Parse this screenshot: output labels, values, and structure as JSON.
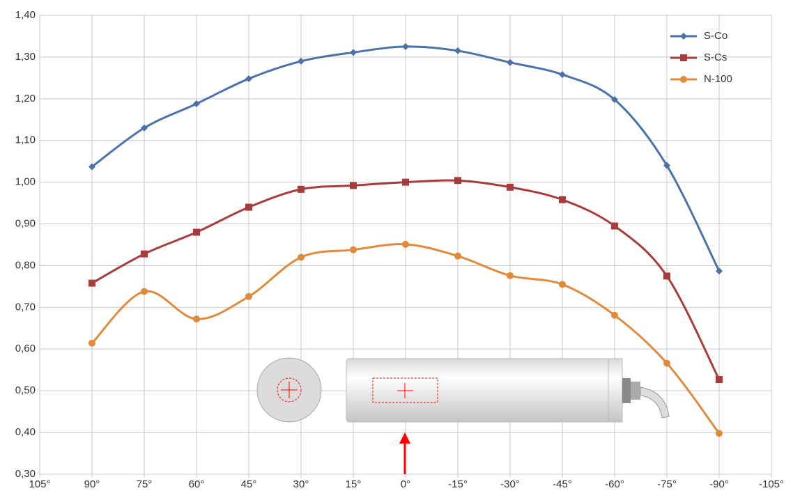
{
  "chart_data": {
    "type": "line",
    "x": [
      90,
      75,
      60,
      45,
      30,
      15,
      0,
      -15,
      -30,
      -45,
      -60,
      -75,
      -90
    ],
    "series": [
      {
        "name": "S-Co",
        "color": "#4a72a8",
        "marker": "diamond",
        "values": [
          1.037,
          1.13,
          1.188,
          1.248,
          1.29,
          1.311,
          1.325,
          1.315,
          1.287,
          1.258,
          1.198,
          1.04,
          0.787
        ]
      },
      {
        "name": "S-Cs",
        "color": "#a83c3a",
        "marker": "square",
        "values": [
          0.758,
          0.828,
          0.88,
          0.94,
          0.983,
          0.992,
          1.0,
          1.004,
          0.988,
          0.958,
          0.895,
          0.775,
          0.527
        ]
      },
      {
        "name": "N-100",
        "color": "#e08a3c",
        "marker": "circle",
        "values": [
          0.614,
          0.738,
          0.672,
          0.726,
          0.82,
          0.838,
          0.851,
          0.823,
          0.776,
          0.755,
          0.681,
          0.566,
          0.398
        ]
      }
    ],
    "xlim": [
      105,
      -105
    ],
    "xticks": [
      {
        "value": 105,
        "label": "105°"
      },
      {
        "value": 90,
        "label": "90°"
      },
      {
        "value": 75,
        "label": "75°"
      },
      {
        "value": 60,
        "label": "60°"
      },
      {
        "value": 45,
        "label": "45°"
      },
      {
        "value": 30,
        "label": "30°"
      },
      {
        "value": 15,
        "label": "15°"
      },
      {
        "value": 0,
        "label": "0°"
      },
      {
        "value": -15,
        "label": "-15°"
      },
      {
        "value": -30,
        "label": "-30°"
      },
      {
        "value": -45,
        "label": "-45°"
      },
      {
        "value": -60,
        "label": "-60°"
      },
      {
        "value": -75,
        "label": "-75°"
      },
      {
        "value": -90,
        "label": "-90°"
      },
      {
        "value": -105,
        "label": "-105°"
      }
    ],
    "ylim": [
      0.3,
      1.4
    ],
    "yticks": [
      {
        "value": 0.3,
        "label": "0,30"
      },
      {
        "value": 0.4,
        "label": "0,40"
      },
      {
        "value": 0.5,
        "label": "0,50"
      },
      {
        "value": 0.6,
        "label": "0,60"
      },
      {
        "value": 0.7,
        "label": "0,70"
      },
      {
        "value": 0.8,
        "label": "0,80"
      },
      {
        "value": 0.9,
        "label": "0,90"
      },
      {
        "value": 1.0,
        "label": "1,00"
      },
      {
        "value": 1.1,
        "label": "1,10"
      },
      {
        "value": 1.2,
        "label": "1,20"
      },
      {
        "value": 1.3,
        "label": "1,30"
      },
      {
        "value": 1.4,
        "label": "1,40"
      }
    ],
    "grid": true,
    "legend": "upper right",
    "smooth": true
  }
}
